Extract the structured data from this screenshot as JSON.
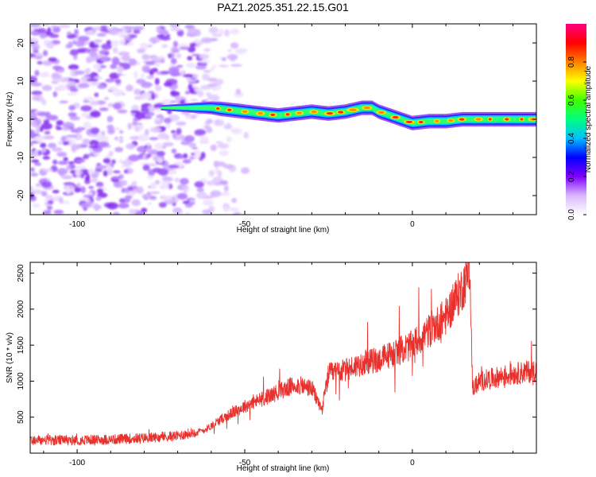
{
  "title": "PAZ1.2025.351.22.15.G01",
  "chart_data": [
    {
      "type": "heatmap",
      "name": "spectrogram",
      "xlabel": "Height of straight line (km)",
      "ylabel": "Frequency (Hz)",
      "xlim": [
        -114,
        37
      ],
      "ylim": [
        -25,
        25
      ],
      "xticks": [
        -100,
        -50,
        0
      ],
      "xtick_labels": [
        "-100",
        "-50",
        "0"
      ],
      "yticks": [
        -20,
        -10,
        0,
        10,
        20
      ],
      "ytick_labels": [
        "-20",
        "-10",
        "0",
        "10",
        "20"
      ],
      "ridge": {
        "x": [
          -75,
          -60,
          -55,
          -50,
          -45,
          -40,
          -35,
          -30,
          -25,
          -20,
          -15,
          -12,
          -10,
          -5,
          0,
          5,
          10,
          15,
          20,
          25,
          30,
          37
        ],
        "y": [
          3,
          3,
          2.5,
          2,
          1.5,
          1,
          1.5,
          2,
          1.5,
          2,
          3,
          3,
          2,
          0.5,
          -1,
          -0.5,
          -0.5,
          0,
          0,
          0,
          0,
          0
        ]
      },
      "noise_region_x": [
        -114,
        -50
      ],
      "colorbar": {
        "label": "Normalized spectral amplitude",
        "range": [
          0,
          1
        ],
        "ticks": [
          0.0,
          0.2,
          0.4,
          0.6,
          0.8
        ],
        "tick_labels": [
          "0.0",
          "0.2",
          "0.4",
          "0.6",
          "0.8"
        ],
        "colors": [
          "#ffffff",
          "#d9b8ff",
          "#8000ff",
          "#0000ff",
          "#00c0ff",
          "#00ff80",
          "#40ff00",
          "#ffff00",
          "#ff8000",
          "#ff0000",
          "#ff0080"
        ]
      }
    },
    {
      "type": "line",
      "name": "snr",
      "xlabel": "Height of straight line (km)",
      "ylabel": "SNR (10 * v/v)",
      "xlim": [
        -114,
        37
      ],
      "ylim": [
        0,
        2650
      ],
      "xticks": [
        -100,
        -50,
        0
      ],
      "xtick_labels": [
        "-100",
        "-50",
        "0"
      ],
      "yticks": [
        500,
        1000,
        1500,
        2000,
        2500
      ],
      "ytick_labels": [
        "500",
        "1000",
        "1500",
        "2000",
        "2500"
      ],
      "color": "#e8302c",
      "series": [
        {
          "name": "SNR",
          "x": [
            -114,
            -100,
            -90,
            -80,
            -70,
            -62,
            -56,
            -50,
            -45,
            -40,
            -35,
            -30,
            -27,
            -25,
            -20,
            -15,
            -10,
            -5,
            0,
            5,
            10,
            15,
            17,
            17.5,
            18,
            20,
            25,
            30,
            37
          ],
          "y": [
            180,
            180,
            190,
            210,
            240,
            320,
            500,
            650,
            750,
            850,
            950,
            900,
            600,
            1100,
            1150,
            1250,
            1300,
            1400,
            1500,
            1700,
            1900,
            2300,
            2550,
            1700,
            900,
            1000,
            1050,
            1100,
            1150
          ]
        }
      ]
    }
  ]
}
